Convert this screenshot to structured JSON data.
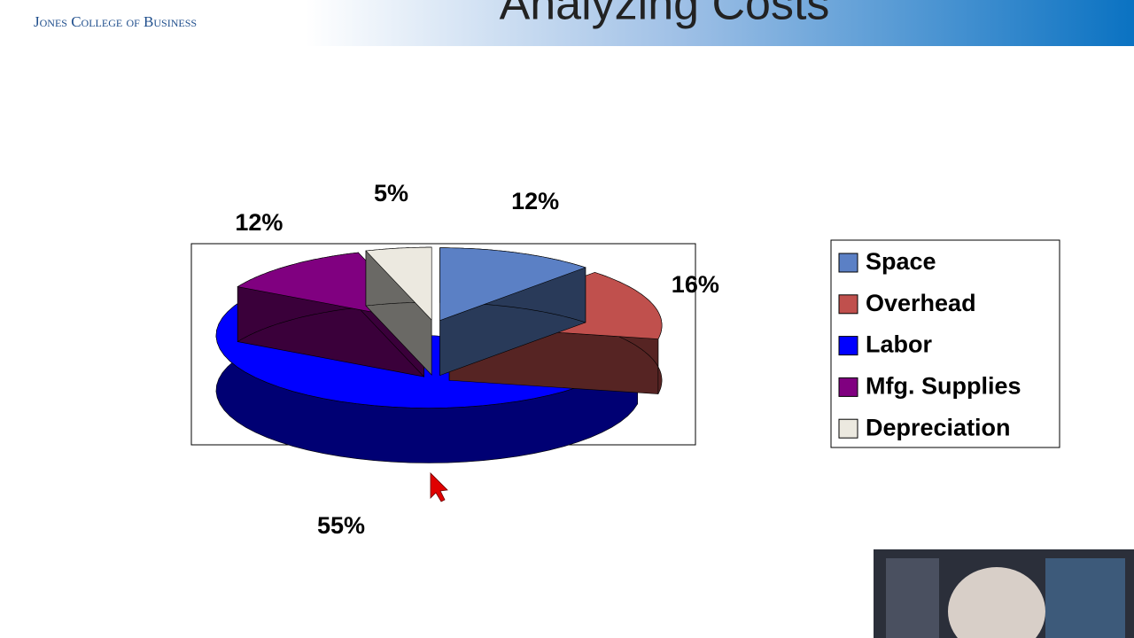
{
  "header": {
    "org": "Jones College of Business"
  },
  "chart_data": {
    "type": "pie3d",
    "title": "Analyzing Costs",
    "categories": [
      "Space",
      "Overhead",
      "Labor",
      "Mfg. Supplies",
      "Depreciation"
    ],
    "values": [
      12,
      16,
      55,
      12,
      5
    ],
    "value_labels": [
      "12%",
      "16%",
      "55%",
      "12%",
      "5%"
    ],
    "colors": [
      "#5b80c5",
      "#c0504d",
      "#0000ff",
      "#800080",
      "#ece9e0"
    ],
    "legend": "right"
  }
}
